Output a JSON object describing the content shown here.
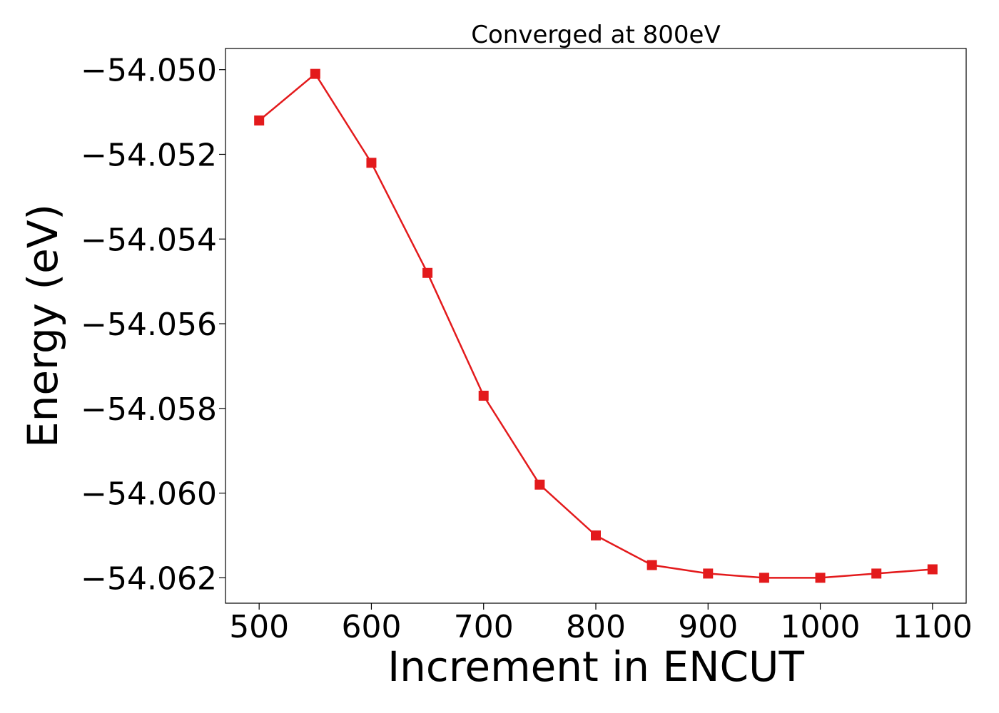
{
  "chart_data": {
    "type": "line",
    "title": "Converged at 800eV",
    "xlabel": "Increment in ENCUT",
    "ylabel": "Energy (eV)",
    "xlim": [
      470,
      1130
    ],
    "ylim": [
      -54.0626,
      -54.0495
    ],
    "xticks": [
      500,
      600,
      700,
      800,
      900,
      1000,
      1100
    ],
    "yticks": [
      -54.05,
      -54.052,
      -54.054,
      -54.056,
      -54.058,
      -54.06,
      -54.062
    ],
    "ytick_labels": [
      "−54.050",
      "−54.052",
      "−54.054",
      "−54.056",
      "−54.058",
      "−54.060",
      "−54.062"
    ],
    "grid": false,
    "marker": "square",
    "color": "#e31a1c",
    "x": [
      500,
      550,
      600,
      650,
      700,
      750,
      800,
      850,
      900,
      950,
      1000,
      1050,
      1100
    ],
    "y": [
      -54.0512,
      -54.0501,
      -54.0522,
      -54.0548,
      -54.0577,
      -54.0598,
      -54.061,
      -54.0617,
      -54.0619,
      -54.062,
      -54.062,
      -54.0619,
      -54.0618
    ]
  }
}
